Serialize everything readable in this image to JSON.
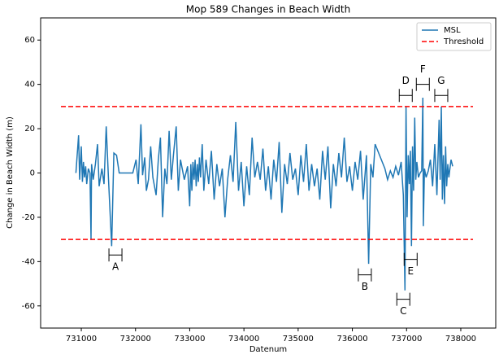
{
  "chart_data": {
    "type": "line",
    "title": "Mop 589 Changes in Beach Width",
    "xlabel": "Datenum",
    "ylabel": "Change in Beach Width (m)",
    "xlim": [
      730250,
      738645
    ],
    "ylim": [
      -70,
      70
    ],
    "xticks": [
      731000,
      732000,
      733000,
      734000,
      735000,
      736000,
      737000,
      738000
    ],
    "yticks": [
      -60,
      -40,
      -20,
      0,
      20,
      40,
      60
    ],
    "legend": "upper right",
    "series": [
      {
        "name": "MSL",
        "color": "#1f77b4",
        "x": [
          730900,
          730950,
          730970,
          731000,
          731020,
          731040,
          731060,
          731080,
          731100,
          731130,
          731160,
          731180,
          731190,
          731220,
          731260,
          731300,
          731330,
          731380,
          731420,
          731460,
          731500,
          731560,
          731600,
          731650,
          731700,
          731950,
          732010,
          732050,
          732100,
          732130,
          732170,
          732200,
          732240,
          732280,
          732320,
          732380,
          732420,
          732460,
          732500,
          732540,
          732580,
          732620,
          732660,
          732700,
          732750,
          732790,
          732830,
          732900,
          732960,
          733000,
          733020,
          733040,
          733060,
          733080,
          733100,
          733120,
          733140,
          733160,
          733180,
          733200,
          733230,
          733260,
          733300,
          733350,
          733400,
          733450,
          733500,
          733550,
          733600,
          733650,
          733700,
          733750,
          733800,
          733850,
          733900,
          733950,
          734000,
          734050,
          734100,
          734150,
          734200,
          734250,
          734300,
          734350,
          734400,
          734450,
          734500,
          734550,
          734600,
          734650,
          734700,
          734750,
          734800,
          734850,
          734900,
          734950,
          735000,
          735050,
          735100,
          735150,
          735200,
          735250,
          735300,
          735350,
          735400,
          735450,
          735500,
          735550,
          735600,
          735650,
          735700,
          735750,
          735800,
          735850,
          735900,
          735950,
          736000,
          736050,
          736100,
          736150,
          736200,
          736260,
          736300,
          736340,
          736380,
          736420,
          736600,
          736650,
          736700,
          736750,
          736800,
          736850,
          736900,
          736940,
          736970,
          736990,
          737010,
          737030,
          737050,
          737070,
          737090,
          737110,
          737130,
          737150,
          737170,
          737190,
          737220,
          737250,
          737280,
          737300,
          737310,
          737330,
          737360,
          737400,
          737440,
          737480,
          737520,
          737560,
          737600,
          737620,
          737640,
          737660,
          737680,
          737700,
          737720,
          737740,
          737760,
          737780,
          737800,
          737820,
          737850
        ],
        "values": [
          0,
          17,
          -3,
          12,
          -4,
          5,
          -2,
          3,
          -5,
          2,
          0,
          -30,
          4,
          -3,
          4,
          13,
          -6,
          2,
          -5,
          21,
          -2,
          -33,
          9,
          8,
          0,
          0,
          6,
          -5,
          22,
          -1,
          7,
          -8,
          -3,
          12,
          -2,
          -10,
          6,
          16,
          -20,
          2,
          -5,
          19,
          -3,
          8,
          21,
          -8,
          6,
          -3,
          3,
          -15,
          4,
          -8,
          5,
          -3,
          6,
          -6,
          4,
          -4,
          7,
          -2,
          13,
          -8,
          6,
          -5,
          10,
          -12,
          4,
          -6,
          2,
          -20,
          -3,
          8,
          -4,
          23,
          -8,
          5,
          -15,
          3,
          -10,
          16,
          -2,
          5,
          -3,
          11,
          -8,
          3,
          -12,
          6,
          -4,
          14,
          -18,
          4,
          -5,
          9,
          -3,
          2,
          -10,
          8,
          -4,
          13,
          -8,
          4,
          -6,
          2,
          -12,
          10,
          -3,
          12,
          -16,
          4,
          -6,
          9,
          -2,
          16,
          -4,
          3,
          -8,
          5,
          -3,
          10,
          -12,
          8,
          -41,
          4,
          -2,
          13,
          2,
          -3,
          1,
          -2,
          3,
          -1,
          5,
          -10,
          -53,
          30,
          -20,
          8,
          -5,
          10,
          -33,
          12,
          -8,
          25,
          -3,
          5,
          -2,
          0,
          1,
          34,
          -24,
          2,
          -2,
          1,
          6,
          -6,
          13,
          -10,
          24,
          -3,
          30,
          -12,
          8,
          -14,
          12,
          -6,
          4,
          -2,
          2,
          6,
          3
        ]
      }
    ],
    "threshold": {
      "name": "Threshold",
      "color": "#ff0000",
      "values": [
        30,
        -30
      ],
      "xlim": [
        730625,
        738225
      ]
    },
    "annotations": [
      {
        "text": "A",
        "x": 731630,
        "y": -37
      },
      {
        "text": "B",
        "x": 736230,
        "y": -46
      },
      {
        "text": "C",
        "x": 736940,
        "y": -57
      },
      {
        "text": "D",
        "x": 736985,
        "y": 35
      },
      {
        "text": "E",
        "x": 737075,
        "y": -39
      },
      {
        "text": "F",
        "x": 737300,
        "y": 40
      },
      {
        "text": "G",
        "x": 737640,
        "y": 35
      }
    ]
  }
}
